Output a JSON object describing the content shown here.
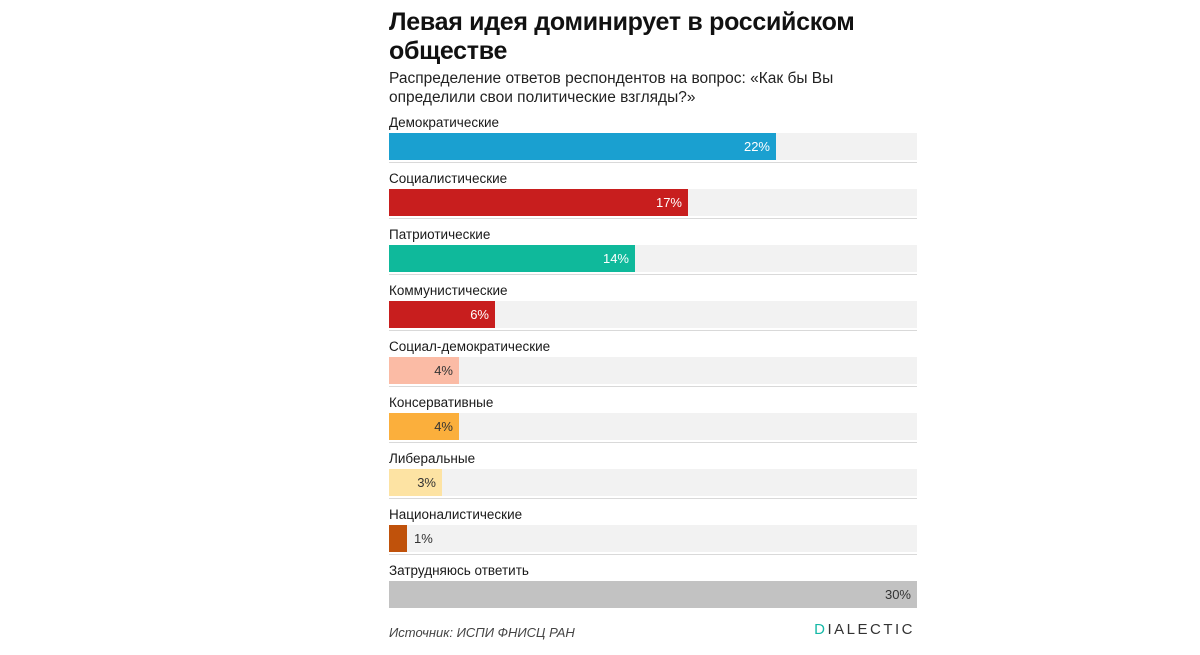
{
  "chart_data": {
    "type": "bar",
    "orientation": "horizontal",
    "title": "Левая идея доминирует в российском обществе",
    "subtitle": "Распределение ответов респондентов на вопрос: «Как бы Вы определили свои политические взгляды?»",
    "categories": [
      "Демократические",
      "Социалистические",
      "Патриотические",
      "Коммунистические",
      "Социал-демократические",
      "Консервативные",
      "Либеральные",
      "Националистические",
      "Затрудняюсь ответить"
    ],
    "values": [
      22,
      17,
      14,
      6,
      4,
      4,
      3,
      1,
      30
    ],
    "value_labels": [
      "22%",
      "17%",
      "14%",
      "6%",
      "4%",
      "4%",
      "3%",
      "1%",
      "30%"
    ],
    "colors": [
      "#1aa0d0",
      "#c81e1e",
      "#0fb99b",
      "#c81e1e",
      "#fbbba5",
      "#fbaf3c",
      "#fde3a3",
      "#c0520b",
      "#c2c2c2"
    ],
    "label_colors": [
      "#ffffff",
      "#ffffff",
      "#ffffff",
      "#ffffff",
      "#333333",
      "#333333",
      "#333333",
      "#333333",
      "#333333"
    ],
    "xlim": [
      0,
      30
    ],
    "grid": false,
    "legend": "none"
  },
  "footer": {
    "source": "Источник: ИСПИ ФНИСЦ РАН",
    "logo_first": "D",
    "logo_rest": "IALECTIC"
  }
}
